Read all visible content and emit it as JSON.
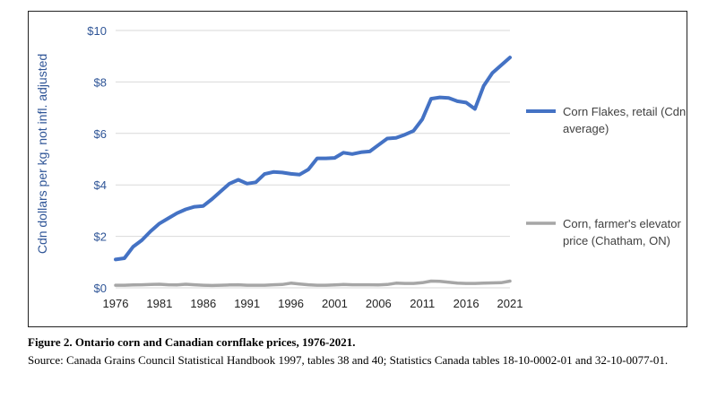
{
  "chart_data": {
    "type": "line",
    "title": "",
    "xlabel": "",
    "ylabel": "Cdn dollars per kg, not infl. adjusted",
    "x_ticks": [
      "1976",
      "1981",
      "1986",
      "1991",
      "1996",
      "2001",
      "2006",
      "2011",
      "2016",
      "2021"
    ],
    "y_ticks": [
      "$0",
      "$2",
      "$4",
      "$6",
      "$8",
      "$10"
    ],
    "ylim": [
      0,
      10
    ],
    "xlim": [
      1976,
      2021
    ],
    "grid": "horizontal",
    "legend_position": "right",
    "series": [
      {
        "name": "Corn Flakes, retail (Cdn average)",
        "legend_lines": [
          "Corn Flakes, retail (Cdn",
          "average)"
        ],
        "color": "#4472c4",
        "x": [
          1976,
          1977,
          1978,
          1979,
          1980,
          1981,
          1982,
          1983,
          1984,
          1985,
          1986,
          1987,
          1988,
          1989,
          1990,
          1991,
          1992,
          1993,
          1994,
          1995,
          1996,
          1997,
          1998,
          1999,
          2000,
          2001,
          2002,
          2003,
          2004,
          2005,
          2006,
          2007,
          2008,
          2009,
          2010,
          2011,
          2012,
          2013,
          2014,
          2015,
          2016,
          2017,
          2018,
          2019,
          2020,
          2021
        ],
        "values": [
          1.1,
          1.15,
          1.6,
          1.85,
          2.2,
          2.5,
          2.7,
          2.9,
          3.05,
          3.15,
          3.18,
          3.45,
          3.75,
          4.05,
          4.2,
          4.05,
          4.1,
          4.42,
          4.5,
          4.48,
          4.43,
          4.4,
          4.6,
          5.03,
          5.03,
          5.05,
          5.25,
          5.2,
          5.27,
          5.3,
          5.55,
          5.8,
          5.83,
          5.95,
          6.1,
          6.55,
          7.35,
          7.4,
          7.38,
          7.25,
          7.2,
          6.95,
          7.85,
          8.35,
          8.65,
          8.95
        ]
      },
      {
        "name": "Corn, farmer's elevator price (Chatham, ON)",
        "legend_lines": [
          "Corn, farmer's elevator",
          "price (Chatham, ON)"
        ],
        "color": "#a6a6a6",
        "x": [
          1976,
          1977,
          1978,
          1979,
          1980,
          1981,
          1982,
          1983,
          1984,
          1985,
          1986,
          1987,
          1988,
          1989,
          1990,
          1991,
          1992,
          1993,
          1994,
          1995,
          1996,
          1997,
          1998,
          1999,
          2000,
          2001,
          2002,
          2003,
          2004,
          2005,
          2006,
          2007,
          2008,
          2009,
          2010,
          2011,
          2012,
          2013,
          2014,
          2015,
          2016,
          2017,
          2018,
          2019,
          2020,
          2021
        ],
        "values": [
          0.1,
          0.1,
          0.11,
          0.12,
          0.13,
          0.14,
          0.12,
          0.11,
          0.14,
          0.12,
          0.1,
          0.09,
          0.1,
          0.11,
          0.12,
          0.1,
          0.1,
          0.1,
          0.12,
          0.13,
          0.18,
          0.15,
          0.12,
          0.1,
          0.1,
          0.11,
          0.13,
          0.12,
          0.12,
          0.12,
          0.11,
          0.13,
          0.18,
          0.17,
          0.17,
          0.2,
          0.26,
          0.25,
          0.22,
          0.18,
          0.17,
          0.17,
          0.18,
          0.19,
          0.2,
          0.26
        ]
      }
    ]
  },
  "caption": {
    "title": "Figure 2. Ontario corn and Canadian cornflake prices, 1976-2021.",
    "source": "Source: Canada Grains Council Statistical Handbook 1997, tables 38 and 40; Statistics Canada tables 18-10-0002-01 and 32-10-0077-01."
  }
}
